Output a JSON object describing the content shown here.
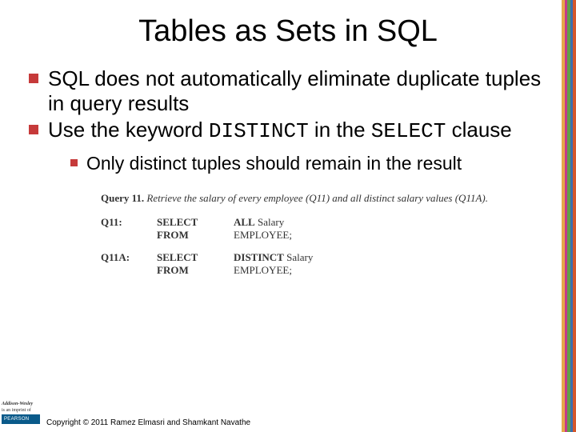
{
  "stripe_colors": [
    "#e5a84a",
    "#c43a8a",
    "#5fa04a",
    "#3a6fb0",
    "#d4572b"
  ],
  "bullet_color": "#c63a3a",
  "title": "Tables as Sets in SQL",
  "bullets": [
    {
      "text_parts": [
        {
          "t": "SQL does not automatically eliminate duplicate tuples in query results",
          "mono": false
        }
      ]
    },
    {
      "text_parts": [
        {
          "t": "Use the keyword ",
          "mono": false
        },
        {
          "t": "DISTINCT",
          "mono": true
        },
        {
          "t": " in the ",
          "mono": false
        },
        {
          "t": "SELECT",
          "mono": true
        },
        {
          "t": " clause",
          "mono": false
        }
      ]
    }
  ],
  "sub_bullet": "Only distinct tuples should remain in the result",
  "query": {
    "label": "Query 11.",
    "desc": "Retrieve the salary of every employee (Q11) and all distinct salary values (Q11A).",
    "q11": {
      "id": "Q11:",
      "lines": [
        {
          "kw": "SELECT",
          "val_parts": [
            {
              "t": "ALL",
              "bold": true
            },
            {
              "t": " Salary",
              "bold": false
            }
          ]
        },
        {
          "kw": "FROM",
          "val_parts": [
            {
              "t": "EMPLOYEE;",
              "bold": false
            }
          ]
        }
      ]
    },
    "q11a": {
      "id": "Q11A:",
      "lines": [
        {
          "kw": "SELECT",
          "val_parts": [
            {
              "t": "DISTINCT",
              "bold": true
            },
            {
              "t": " Salary",
              "bold": false
            }
          ]
        },
        {
          "kw": "FROM",
          "val_parts": [
            {
              "t": "EMPLOYEE;",
              "bold": false
            }
          ]
        }
      ]
    }
  },
  "footer": {
    "aw": "Addison-Wesley",
    "aw2": "is an imprint of",
    "pearson": "PEARSON",
    "pearson_bg": "#0a5a8a",
    "copyright": "Copyright © 2011 Ramez Elmasri and Shamkant Navathe"
  }
}
